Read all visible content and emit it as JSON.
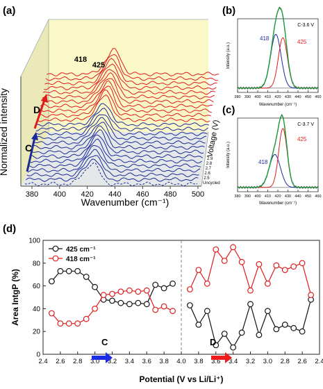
{
  "panel_labels": {
    "a": "(a)",
    "b": "(b)",
    "c": "(c)",
    "d": "(d)"
  },
  "colors": {
    "red": "#e01b1b",
    "blue": "#1b2a9c",
    "green": "#1f9a3b",
    "gray": "#777777",
    "wall": "#fbf8c8",
    "floor": "#e4e8e8"
  },
  "chart_data": [
    {
      "id": "a",
      "type": "line",
      "xlabel": "Wavenumber (cm⁻¹)",
      "ylabel": "Normalized intensity",
      "zlabel": "Voltage (V)",
      "x_ticks": [
        380,
        400,
        420,
        440,
        460,
        480,
        500
      ],
      "xlim": [
        375,
        500
      ],
      "peak_labels": [
        "418",
        "425"
      ],
      "arrow_labels": [
        "C",
        "D"
      ],
      "voltage_labels": [
        "Uncycled",
        "2.5",
        "2.6",
        "2.7",
        "2.8",
        "2.9"
      ],
      "series_groups": [
        {
          "name": "uncycled",
          "count": 1,
          "color": "#1b2a9c"
        },
        {
          "name": "C",
          "count": 13,
          "color": "#1b2a9c"
        },
        {
          "name": "D",
          "count": 11,
          "color": "#e01b1b"
        }
      ]
    },
    {
      "id": "b",
      "type": "line",
      "title": "C-3.6 V",
      "xlabel": "Wavenumber (cm⁻¹)",
      "ylabel": "Intensity (a.u.)",
      "xlim": [
        380,
        460
      ],
      "x_ticks": [
        380,
        390,
        400,
        410,
        420,
        430,
        440,
        450,
        460
      ],
      "peaks": [
        {
          "label": "418",
          "center": 418,
          "amplitude": 0.62,
          "width": 5.2,
          "color": "#1b2a9c"
        },
        {
          "label": "425",
          "center": 425,
          "amplitude": 0.58,
          "width": 4.5,
          "color": "#e01b1b"
        }
      ],
      "baseline": 0.05
    },
    {
      "id": "c",
      "type": "line",
      "title": "C-3.7 V",
      "xlabel": "Wavenumber (cm⁻¹)",
      "ylabel": "Intensity (a.u.)",
      "xlim": [
        380,
        460
      ],
      "x_ticks": [
        380,
        390,
        400,
        410,
        420,
        430,
        440,
        450,
        460
      ],
      "peaks": [
        {
          "label": "418",
          "center": 417,
          "amplitude": 0.38,
          "width": 5.5,
          "color": "#1b2a9c"
        },
        {
          "label": "425",
          "center": 425,
          "amplitude": 0.68,
          "width": 4.2,
          "color": "#e01b1b"
        }
      ],
      "baseline": 0.05
    },
    {
      "id": "d",
      "type": "line",
      "xlabel": "Potential (V vs Li/Li⁺)",
      "ylabel": "Area IntgP (%)",
      "ylim": [
        0,
        100
      ],
      "y_ticks": [
        0,
        20,
        40,
        60,
        80,
        100
      ],
      "x_tick_labels": [
        "2.4",
        "2.6",
        "2.8",
        "3.0",
        "3.2",
        "3.4",
        "3.6",
        "3.8",
        "4.0",
        "3.8",
        "3.6",
        "3.4",
        "3.2",
        "3.0",
        "2.8",
        "2.6",
        "2.4"
      ],
      "legend": [
        "425 cm⁻¹",
        "418 cm⁻¹"
      ],
      "legend_position": "top-left",
      "arrow_labels": [
        "C",
        "D"
      ],
      "charge_x": [
        2.5,
        2.6,
        2.7,
        2.8,
        2.9,
        3.0,
        3.1,
        3.2,
        3.3,
        3.4,
        3.5,
        3.6,
        3.7,
        3.8,
        3.9
      ],
      "discharge_x": [
        3.9,
        3.8,
        3.7,
        3.6,
        3.5,
        3.4,
        3.3,
        3.2,
        3.1,
        3.0,
        2.9,
        2.8,
        2.7,
        2.6,
        2.5
      ],
      "series": [
        {
          "name": "425 cm⁻¹",
          "color": "#111111",
          "charge": [
            64,
            73,
            73,
            73,
            68,
            59,
            48,
            47,
            45,
            44,
            45,
            44,
            61,
            58,
            62
          ],
          "discharge": [
            43,
            26,
            38,
            8,
            18,
            6,
            19,
            44,
            17,
            38,
            22,
            26,
            23,
            20,
            48
          ]
        },
        {
          "name": "418 cm⁻¹",
          "color": "#e01b1b",
          "charge": [
            36,
            27,
            27,
            27,
            31,
            40,
            52,
            53,
            55,
            56,
            55,
            56,
            39,
            42,
            38
          ],
          "discharge": [
            57,
            74,
            62,
            92,
            82,
            94,
            81,
            56,
            79,
            62,
            78,
            74,
            77,
            80,
            52
          ]
        }
      ]
    }
  ]
}
